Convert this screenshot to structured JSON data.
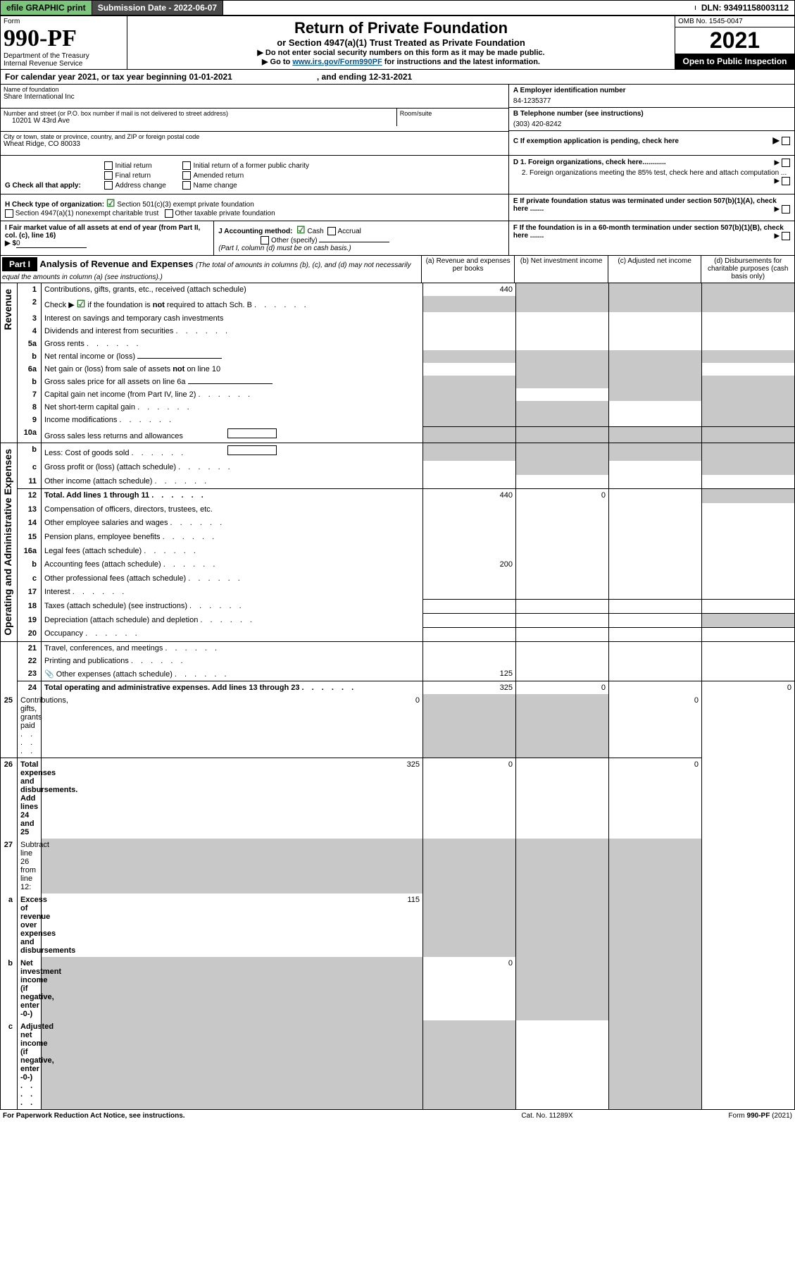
{
  "topbar": {
    "efile": "efile GRAPHIC print",
    "submission": "Submission Date - 2022-06-07",
    "blank": "",
    "dln": "DLN: 93491158003112"
  },
  "header": {
    "form_word": "Form",
    "form_no": "990-PF",
    "dept": "Department of the Treasury",
    "irs": "Internal Revenue Service",
    "title": "Return of Private Foundation",
    "subtitle": "or Section 4947(a)(1) Trust Treated as Private Foundation",
    "note1": "▶ Do not enter social security numbers on this form as it may be made public.",
    "note2_pre": "▶ Go to ",
    "note2_link": "www.irs.gov/Form990PF",
    "note2_post": " for instructions and the latest information.",
    "omb": "OMB No. 1545-0047",
    "year": "2021",
    "open": "Open to Public Inspection"
  },
  "cal": {
    "text_pre": "For calendar year 2021, or tax year beginning ",
    "begin": "01-01-2021",
    "mid": ", and ending ",
    "end": "12-31-2021"
  },
  "id": {
    "name_lbl": "Name of foundation",
    "name": "Share International Inc",
    "addr_lbl": "Number and street (or P.O. box number if mail is not delivered to street address)",
    "addr": "10201 W 43rd Ave",
    "room_lbl": "Room/suite",
    "city_lbl": "City or town, state or province, country, and ZIP or foreign postal code",
    "city": "Wheat Ridge, CO  80033",
    "A_lbl": "A Employer identification number",
    "A": "84-1235377",
    "B_lbl": "B Telephone number (see instructions)",
    "B": "(303) 420-8242",
    "C": "C  If exemption application is pending, check here"
  },
  "G": {
    "label": "G Check all that apply:",
    "o1": "Initial return",
    "o2": "Final return",
    "o3": "Address change",
    "o4": "Initial return of a former public charity",
    "o5": "Amended return",
    "o6": "Name change"
  },
  "D": {
    "d1": "D 1. Foreign organizations, check here............",
    "d2": "2. Foreign organizations meeting the 85% test, check here and attach computation ..."
  },
  "H": {
    "label": "H Check type of organization:",
    "o1": "Section 501(c)(3) exempt private foundation",
    "o2": "Section 4947(a)(1) nonexempt charitable trust",
    "o3": "Other taxable private foundation"
  },
  "E": "E  If private foundation status was terminated under section 507(b)(1)(A), check here .......",
  "I": {
    "label": "I Fair market value of all assets at end of year (from Part II, col. (c), line 16)",
    "amt_pre": "▶ $",
    "amt": "0"
  },
  "J": {
    "label": "J Accounting method:",
    "o1": "Cash",
    "o2": "Accrual",
    "o3": "Other (specify)",
    "note": "(Part I, column (d) must be on cash basis.)"
  },
  "F": "F  If the foundation is in a 60-month termination under section 507(b)(1)(B), check here .......",
  "part1": {
    "tab": "Part I",
    "title": "Analysis of Revenue and Expenses",
    "title_note": "(The total of amounts in columns (b), (c), and (d) may not necessarily equal the amounts in column (a) (see instructions).)",
    "cols": {
      "a": "(a) Revenue and expenses per books",
      "b": "(b) Net investment income",
      "c": "(c) Adjusted net income",
      "d": "(d) Disbursements for charitable purposes (cash basis only)"
    }
  },
  "vert": {
    "rev": "Revenue",
    "exp": "Operating and Administrative Expenses"
  },
  "rows": [
    {
      "n": "1",
      "d": "Contributions, gifts, grants, etc., received (attach schedule)",
      "a": "440",
      "shade": [
        "b",
        "c",
        "d"
      ]
    },
    {
      "n": "2",
      "d": "Check ▶ ☑ if the foundation is not required to attach Sch. B",
      "dots": 1,
      "shade": [
        "a",
        "b",
        "c",
        "d"
      ]
    },
    {
      "n": "3",
      "d": "Interest on savings and temporary cash investments"
    },
    {
      "n": "4",
      "d": "Dividends and interest from securities",
      "dots": 1
    },
    {
      "n": "5a",
      "d": "Gross rents",
      "dots": 1
    },
    {
      "n": "b",
      "d": "Net rental income or (loss)",
      "inline_line": 1,
      "shade": [
        "a",
        "b",
        "c",
        "d"
      ]
    },
    {
      "n": "6a",
      "d": "Net gain or (loss) from sale of assets not on line 10",
      "shade": [
        "b",
        "c"
      ]
    },
    {
      "n": "b",
      "d": "Gross sales price for all assets on line 6a",
      "inline_line": 1,
      "shade": [
        "a",
        "b",
        "c",
        "d"
      ]
    },
    {
      "n": "7",
      "d": "Capital gain net income (from Part IV, line 2)",
      "dots": 1,
      "shade": [
        "a",
        "c",
        "d"
      ]
    },
    {
      "n": "8",
      "d": "Net short-term capital gain",
      "dots": 1,
      "shade": [
        "a",
        "b",
        "d"
      ]
    },
    {
      "n": "9",
      "d": "Income modifications",
      "dots": 1,
      "shade": [
        "a",
        "b",
        "d"
      ]
    },
    {
      "n": "10a",
      "d": "Gross sales less returns and allowances",
      "inline_box": 1,
      "shade": [
        "a",
        "b",
        "c",
        "d"
      ]
    },
    {
      "n": "b",
      "d": "Less: Cost of goods sold",
      "dots": 1,
      "inline_box": 1,
      "shade": [
        "a",
        "b",
        "c",
        "d"
      ]
    },
    {
      "n": "c",
      "d": "Gross profit or (loss) (attach schedule)",
      "dots": 1,
      "shade": [
        "b",
        "d"
      ]
    },
    {
      "n": "11",
      "d": "Other income (attach schedule)",
      "dots": 1
    },
    {
      "n": "12",
      "d": "Total. Add lines 1 through 11",
      "dots": 1,
      "bold": 1,
      "a": "440",
      "b": "0",
      "shade": [
        "d"
      ]
    },
    {
      "n": "13",
      "d": "Compensation of officers, directors, trustees, etc."
    },
    {
      "n": "14",
      "d": "Other employee salaries and wages",
      "dots": 1
    },
    {
      "n": "15",
      "d": "Pension plans, employee benefits",
      "dots": 1
    },
    {
      "n": "16a",
      "d": "Legal fees (attach schedule)",
      "dots": 1
    },
    {
      "n": "b",
      "d": "Accounting fees (attach schedule)",
      "dots": 1,
      "a": "200"
    },
    {
      "n": "c",
      "d": "Other professional fees (attach schedule)",
      "dots": 1
    },
    {
      "n": "17",
      "d": "Interest",
      "dots": 1
    },
    {
      "n": "18",
      "d": "Taxes (attach schedule) (see instructions)",
      "dots": 1
    },
    {
      "n": "19",
      "d": "Depreciation (attach schedule) and depletion",
      "dots": 1,
      "shade": [
        "d"
      ]
    },
    {
      "n": "20",
      "d": "Occupancy",
      "dots": 1
    },
    {
      "n": "21",
      "d": "Travel, conferences, and meetings",
      "dots": 1
    },
    {
      "n": "22",
      "d": "Printing and publications",
      "dots": 1
    },
    {
      "n": "23",
      "d": "Other expenses (attach schedule)",
      "dots": 1,
      "icon": 1,
      "a": "125"
    },
    {
      "n": "24",
      "d": "Total operating and administrative expenses. Add lines 13 through 23",
      "dots": 1,
      "bold": 1,
      "a": "325",
      "b": "0",
      "dd": "0"
    },
    {
      "n": "25",
      "d": "Contributions, gifts, grants paid",
      "dots": 1,
      "a": "0",
      "shade": [
        "b",
        "c"
      ],
      "dd": "0"
    },
    {
      "n": "26",
      "d": "Total expenses and disbursements. Add lines 24 and 25",
      "bold": 1,
      "a": "325",
      "b": "0",
      "dd": "0"
    },
    {
      "n": "27",
      "d": "Subtract line 26 from line 12:",
      "shade": [
        "a",
        "b",
        "c",
        "d"
      ]
    },
    {
      "n": "a",
      "d": "Excess of revenue over expenses and disbursements",
      "bold": 1,
      "a": "115",
      "shade": [
        "b",
        "c",
        "d"
      ]
    },
    {
      "n": "b",
      "d": "Net investment income (if negative, enter -0-)",
      "bold": 1,
      "shade": [
        "a",
        "c",
        "d"
      ],
      "b": "0"
    },
    {
      "n": "c",
      "d": "Adjusted net income (if negative, enter -0-)",
      "bold": 1,
      "dots": 1,
      "shade": [
        "a",
        "b",
        "d"
      ]
    }
  ],
  "footer": {
    "left": "For Paperwork Reduction Act Notice, see instructions.",
    "mid": "Cat. No. 11289X",
    "right": "Form 990-PF (2021)"
  }
}
